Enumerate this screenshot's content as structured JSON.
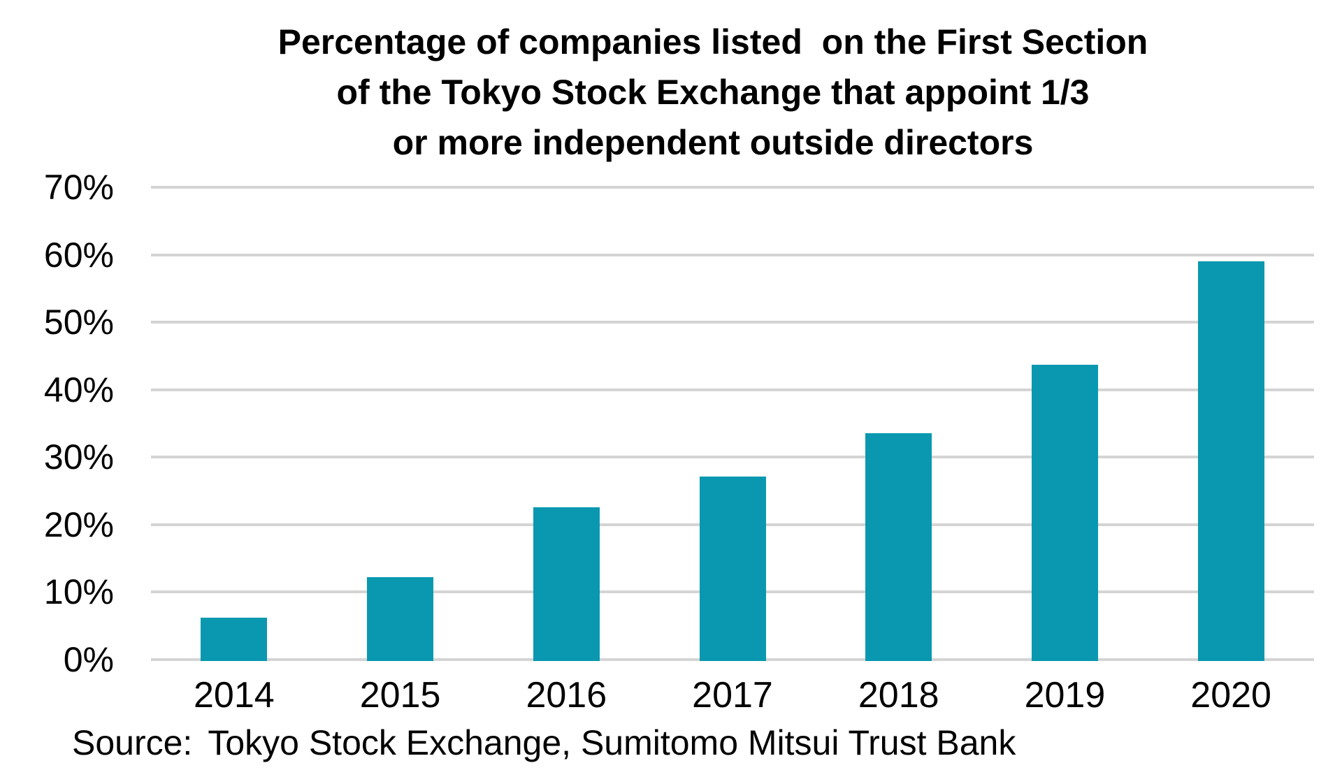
{
  "title": {
    "lines": [
      "Percentage of companies listed  on the First Section",
      "of the Tokyo Stock Exchange that appoint 1/3",
      "or more independent outside directors"
    ]
  },
  "source": {
    "label": "Source:",
    "text": "Tokyo Stock Exchange, Sumitomo Mitsui Trust Bank"
  },
  "chart_data": {
    "type": "bar",
    "title": "Percentage of companies listed on the First Section of the Tokyo Stock Exchange that appoint 1/3 or more independent outside directors",
    "categories": [
      "2014",
      "2015",
      "2016",
      "2017",
      "2018",
      "2019",
      "2020"
    ],
    "values": [
      6.2,
      12.2,
      22.6,
      27.1,
      33.5,
      43.7,
      59.0
    ],
    "xlabel": "",
    "ylabel": "",
    "ylim": [
      0,
      70
    ],
    "y_ticks": [
      0,
      10,
      20,
      30,
      40,
      50,
      60,
      70
    ],
    "y_tick_labels": [
      "0%",
      "10%",
      "20%",
      "30%",
      "40%",
      "50%",
      "60%",
      "70%"
    ],
    "grid": true,
    "legend": false,
    "source_note": "Source: Tokyo Stock Exchange, Sumitomo Mitsui Trust Bank",
    "colors": {
      "bar": "#0998b0",
      "gridline": "#d4d4d4",
      "text": "#000000",
      "background": "#ffffff"
    }
  }
}
